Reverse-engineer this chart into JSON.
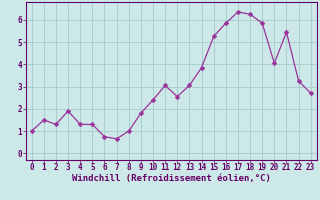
{
  "x": [
    0,
    1,
    2,
    3,
    4,
    5,
    6,
    7,
    8,
    9,
    10,
    11,
    12,
    13,
    14,
    15,
    16,
    17,
    18,
    19,
    20,
    21,
    22,
    23
  ],
  "y": [
    1.0,
    1.5,
    1.3,
    1.9,
    1.3,
    1.3,
    0.75,
    0.65,
    1.0,
    1.8,
    2.4,
    3.05,
    2.55,
    3.05,
    3.85,
    5.25,
    5.85,
    6.35,
    6.25,
    5.85,
    4.05,
    5.45,
    3.25,
    2.7
  ],
  "line_color": "#993399",
  "marker": "D",
  "marker_size": 2.5,
  "bg_color": "#cce8e8",
  "grid_color": "#aacece",
  "xlabel": "Windchill (Refroidissement éolien,°C)",
  "ylim": [
    -0.3,
    6.8
  ],
  "xlim": [
    -0.5,
    23.5
  ],
  "yticks": [
    0,
    1,
    2,
    3,
    4,
    5,
    6
  ],
  "xticks": [
    0,
    1,
    2,
    3,
    4,
    5,
    6,
    7,
    8,
    9,
    10,
    11,
    12,
    13,
    14,
    15,
    16,
    17,
    18,
    19,
    20,
    21,
    22,
    23
  ],
  "tick_color": "#660066",
  "label_color": "#660066",
  "border_color": "#660066",
  "font_size_xlabel": 6.5,
  "font_size_ticks": 5.5,
  "line_width": 0.9
}
